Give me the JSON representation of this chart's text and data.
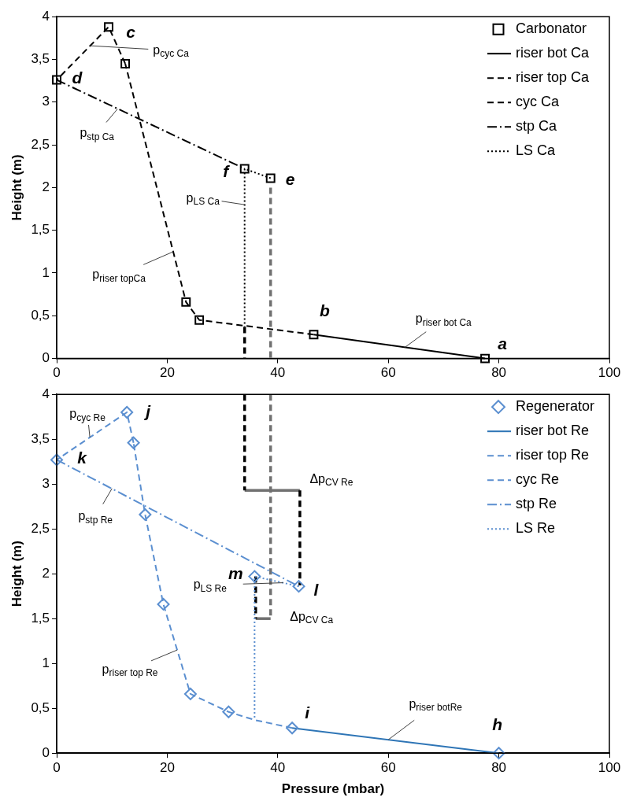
{
  "chart_data": [
    {
      "type": "line",
      "ylabel": "Height (m)",
      "xlim": [
        0,
        100
      ],
      "xticks": [
        0,
        20,
        40,
        60,
        80,
        100
      ],
      "ylim": [
        0,
        4
      ],
      "yticks": [
        0,
        {
          "value": 0.5,
          "label": "0,5"
        },
        1,
        {
          "value": 1.5,
          "label": "1,5"
        },
        2,
        {
          "value": 2.5,
          "label": "2,5"
        },
        3,
        {
          "value": 3.5,
          "label": "3,5"
        },
        4
      ],
      "legend": "top right",
      "grid": false,
      "series": [
        {
          "name": "Carbonator",
          "type": "scatter",
          "marker": "square",
          "color": "#000000",
          "x": [
            77.5,
            46.5,
            25.8,
            23.4,
            12.4,
            9.4,
            0,
            34,
            38.7
          ],
          "values": [
            0,
            0.28,
            0.45,
            0.66,
            3.45,
            3.88,
            3.26,
            2.22,
            2.11
          ]
        },
        {
          "name": "riser bot Ca",
          "type": "line",
          "line_style": "solid",
          "color": "#000000",
          "x": [
            77.5,
            46.5
          ],
          "values": [
            0,
            0.28
          ]
        },
        {
          "name": "riser top Ca",
          "type": "line",
          "line_style": "dashed",
          "color": "#000000",
          "x": [
            46.5,
            25.8,
            23.4,
            12.4
          ],
          "values": [
            0.28,
            0.45,
            0.66,
            3.45
          ]
        },
        {
          "name": "cyc Ca",
          "type": "line",
          "line_style": "dashed",
          "color": "#000000",
          "x": [
            12.4,
            9.4,
            0
          ],
          "values": [
            3.45,
            3.88,
            3.26
          ]
        },
        {
          "name": "stp Ca",
          "type": "line",
          "line_style": "dashdot",
          "color": "#000000",
          "x": [
            0,
            34
          ],
          "values": [
            3.26,
            2.22
          ]
        },
        {
          "name": "LS Ca",
          "type": "line",
          "line_style": "dotted",
          "color": "#000000",
          "x": [
            38.7,
            34,
            34
          ],
          "values": [
            2.11,
            2.22,
            0.37
          ]
        },
        {
          "type": "line",
          "line_style": "dashed",
          "color": "#000000",
          "x": [
            34,
            34
          ],
          "values": [
            0.37,
            0
          ]
        },
        {
          "type": "line",
          "line_style": "dashed",
          "color": "#707070",
          "x": [
            38.7,
            38.7
          ],
          "values": [
            2.0,
            0
          ]
        }
      ],
      "annotations": [
        {
          "text": "a",
          "x": 77.5,
          "y": 0
        },
        {
          "text": "b",
          "x": 46.5,
          "y": 0.28
        },
        {
          "text": "c",
          "x": 9.4,
          "y": 3.88
        },
        {
          "text": "d",
          "x": 0,
          "y": 3.26
        },
        {
          "text": "e",
          "x": 38.7,
          "y": 2.11
        },
        {
          "text": "f",
          "x": 34,
          "y": 2.22
        },
        {
          "text": "p$_{cyc Ca}$",
          "x": 6,
          "y": 3.66
        },
        {
          "text": "p$_{stp Ca}$",
          "x": 11,
          "y": 2.92
        },
        {
          "text": "p$_{LS Ca}$",
          "x": 34,
          "y": 1.8
        },
        {
          "text": "p$_{riser topCa}$",
          "x": 21.1,
          "y": 1.25
        },
        {
          "text": "p$_{riser bot Ca}$",
          "x": 63,
          "y": 0.13
        }
      ]
    },
    {
      "type": "line",
      "xlabel": "Pressure (mbar)",
      "ylabel": "Height (m)",
      "xlim": [
        0,
        100
      ],
      "xticks": [
        0,
        20,
        40,
        60,
        80,
        100
      ],
      "ylim": [
        0,
        4
      ],
      "yticks": [
        0,
        {
          "value": 0.5,
          "label": "0,5"
        },
        1,
        {
          "value": 1.5,
          "label": "1,5"
        },
        2,
        {
          "value": 2.5,
          "label": "2,5"
        },
        3,
        {
          "value": 3.5,
          "label": "3,5"
        },
        4
      ],
      "legend": "top right",
      "grid": false,
      "series": [
        {
          "name": "Regenerator",
          "type": "scatter",
          "marker": "diamond",
          "color": "#5b8fd0",
          "x": [
            80,
            42.6,
            31.1,
            24.2,
            19.3,
            16.0,
            13.9,
            12.7,
            0,
            43.8,
            35.8
          ],
          "values": [
            0,
            0.28,
            0.46,
            0.66,
            1.66,
            2.66,
            3.46,
            3.8,
            3.27,
            1.86,
            1.97
          ]
        },
        {
          "name": "riser bot Re",
          "type": "line",
          "line_style": "solid",
          "color": "#2e75b6",
          "x": [
            80,
            42.6
          ],
          "values": [
            0,
            0.28
          ]
        },
        {
          "name": "riser top Re",
          "type": "line",
          "line_style": "dashed",
          "color": "#5b8fd0",
          "x": [
            42.6,
            35.8,
            31.1,
            24.2,
            19.3,
            16.0,
            13.9
          ],
          "values": [
            0.28,
            0.37,
            0.46,
            0.66,
            1.66,
            2.66,
            3.46
          ]
        },
        {
          "name": "cyc Re",
          "type": "line",
          "line_style": "dashed",
          "color": "#5b8fd0",
          "x": [
            13.9,
            12.7,
            0
          ],
          "values": [
            3.46,
            3.8,
            3.27
          ]
        },
        {
          "name": "stp Re",
          "type": "line",
          "line_style": "dashdot",
          "color": "#5b8fd0",
          "x": [
            0,
            43.8
          ],
          "values": [
            3.27,
            1.86
          ]
        },
        {
          "name": "LS Re",
          "type": "line",
          "line_style": "dotted",
          "color": "#5b8fd0",
          "x": [
            43.8,
            35.8,
            35.8
          ],
          "values": [
            1.86,
            1.97,
            0.37
          ]
        },
        {
          "type": "line",
          "line_style": "dashed",
          "color": "#000000",
          "x": [
            34,
            34
          ],
          "values": [
            4,
            2.93
          ]
        },
        {
          "type": "line",
          "line_style": "dashed",
          "color": "#707070",
          "x": [
            38.7,
            38.7
          ],
          "values": [
            4,
            1.5
          ]
        },
        {
          "type": "line",
          "line_style": "dashed",
          "color": "#000000",
          "x": [
            44,
            44
          ],
          "values": [
            2.93,
            1.87
          ]
        },
        {
          "type": "line",
          "line_style": "dashed",
          "color": "#000000",
          "x": [
            36,
            36
          ],
          "values": [
            1.97,
            1.5
          ]
        },
        {
          "type": "line",
          "line_style": "solid",
          "color": "#707070",
          "x": [
            34,
            44
          ],
          "values": [
            2.93,
            2.93
          ]
        },
        {
          "type": "line",
          "line_style": "solid",
          "color": "#707070",
          "x": [
            36,
            38.7
          ],
          "values": [
            1.5,
            1.5
          ]
        }
      ],
      "annotations": [
        {
          "text": "h",
          "x": 80,
          "y": 0
        },
        {
          "text": "i",
          "x": 42.6,
          "y": 0.28
        },
        {
          "text": "j",
          "x": 12.7,
          "y": 3.8
        },
        {
          "text": "k",
          "x": 0,
          "y": 3.27
        },
        {
          "text": "l",
          "x": 43.8,
          "y": 1.86
        },
        {
          "text": "m",
          "x": 35.8,
          "y": 1.97
        },
        {
          "text": "p$_{cyc Re}$",
          "x": 6,
          "y": 3.52
        },
        {
          "text": "p$_{stp Re}$",
          "x": 10,
          "y": 2.95
        },
        {
          "text": "p$_{LS Re}$",
          "x": 41,
          "y": 1.9
        },
        {
          "text": "p$_{riser top Re}$",
          "x": 21.8,
          "y": 1.15
        },
        {
          "text": "p$_{riser botRe}$",
          "x": 60,
          "y": 0.15
        },
        {
          "text": "Δp$_{CV Re}$",
          "x": 44,
          "y": 2.93
        },
        {
          "text": "Δp$_{CV Ca}$",
          "x": 38.7,
          "y": 1.5
        }
      ]
    }
  ]
}
